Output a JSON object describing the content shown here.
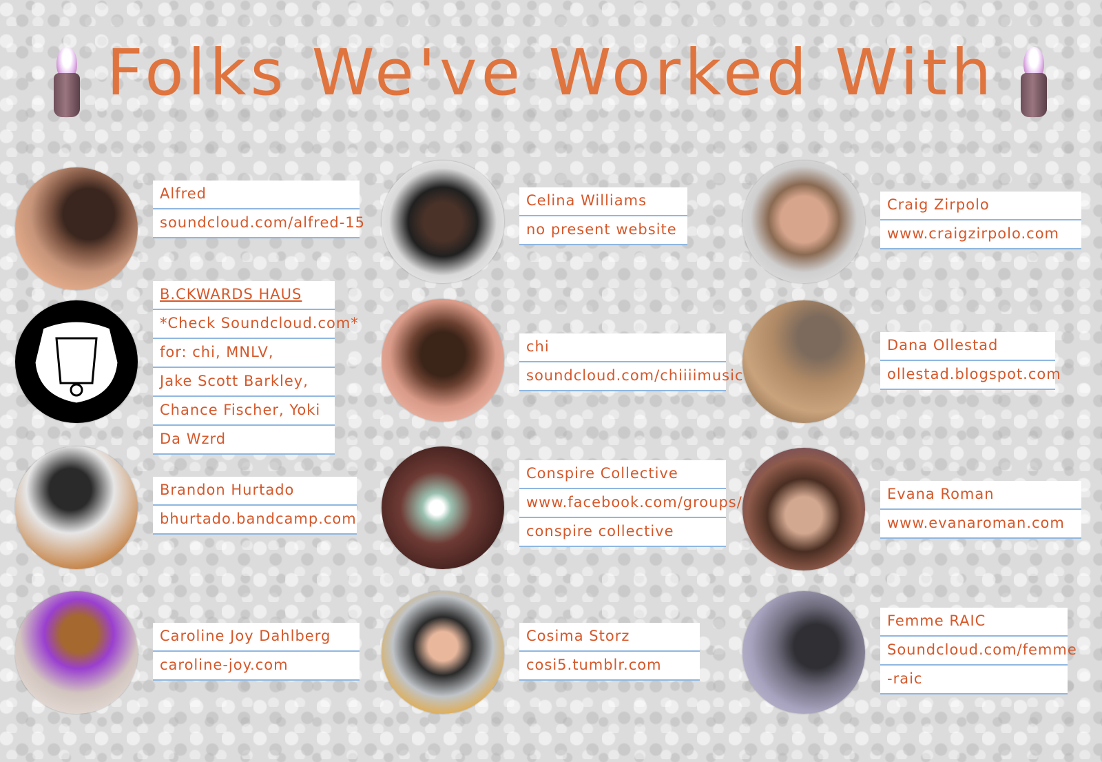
{
  "page": {
    "title": "Folks We've Worked With"
  },
  "people": [
    {
      "name": "Alfred",
      "lines": [
        "soundcloud.com/alfred-15"
      ]
    },
    {
      "name": "Celina Williams",
      "lines": [
        "no present website"
      ]
    },
    {
      "name": "Craig Zirpolo",
      "lines": [
        "www.craigzirpolo.com"
      ]
    },
    {
      "name": "B.CKWARDS HAUS",
      "lines": [
        "*Check Soundcloud.com*",
        "for: chi, MNLV,",
        "Jake Scott Barkley,",
        "Chance Fischer, Yoki",
        "Da Wzrd"
      ]
    },
    {
      "name": "chi",
      "lines": [
        "soundcloud.com/chiiiimusic"
      ]
    },
    {
      "name": "Dana Ollestad",
      "lines": [
        "ollestad.blogspot.com"
      ]
    },
    {
      "name": "Brandon Hurtado",
      "lines": [
        "bhurtado.bandcamp.com"
      ]
    },
    {
      "name": "Conspire Collective",
      "lines": [
        "www.facebook.com/groups/",
        "conspire collective"
      ]
    },
    {
      "name": "Evana Roman",
      "lines": [
        "www.evanaroman.com"
      ]
    },
    {
      "name": "Caroline Joy Dahlberg",
      "lines": [
        "caroline-joy.com"
      ]
    },
    {
      "name": "Cosima Storz",
      "lines": [
        "cosi5.tumblr.com"
      ]
    },
    {
      "name": "Femme RAIC",
      "lines": [
        "Soundcloud.com/femme",
        "-raic"
      ]
    }
  ]
}
